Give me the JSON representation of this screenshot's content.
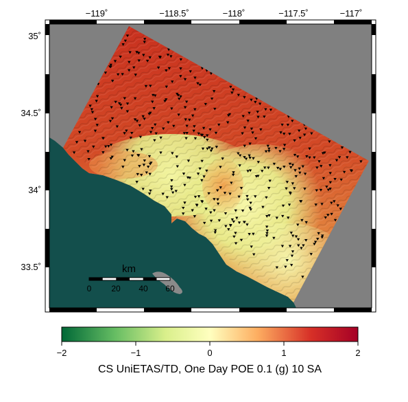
{
  "map": {
    "lon_ticks": [
      "−119˚",
      "−118.5˚",
      "−118˚",
      "−117.5˚",
      "−117˚"
    ],
    "lat_ticks": [
      "35˚",
      "34.5˚",
      "34˚",
      "33.5˚"
    ],
    "scale_bar": {
      "title": "km",
      "ticks": [
        "0",
        "20",
        "40",
        "60"
      ]
    },
    "colors": {
      "ocean": "#134f4c",
      "no_data": "#808080",
      "land_edge": "#8a8a8a",
      "station": "#000000"
    }
  },
  "colorbar": {
    "title": "CS UniETAS/TD, One Day POE 0.1 (g) 10 SA",
    "tick_labels": [
      "−2",
      "−1",
      "0",
      "1",
      "2"
    ],
    "range": [
      -2,
      2
    ],
    "colors": [
      "#006837",
      "#66bd63",
      "#d9ef8b",
      "#ffffbf",
      "#fdae61",
      "#d73027",
      "#a50026"
    ]
  }
}
